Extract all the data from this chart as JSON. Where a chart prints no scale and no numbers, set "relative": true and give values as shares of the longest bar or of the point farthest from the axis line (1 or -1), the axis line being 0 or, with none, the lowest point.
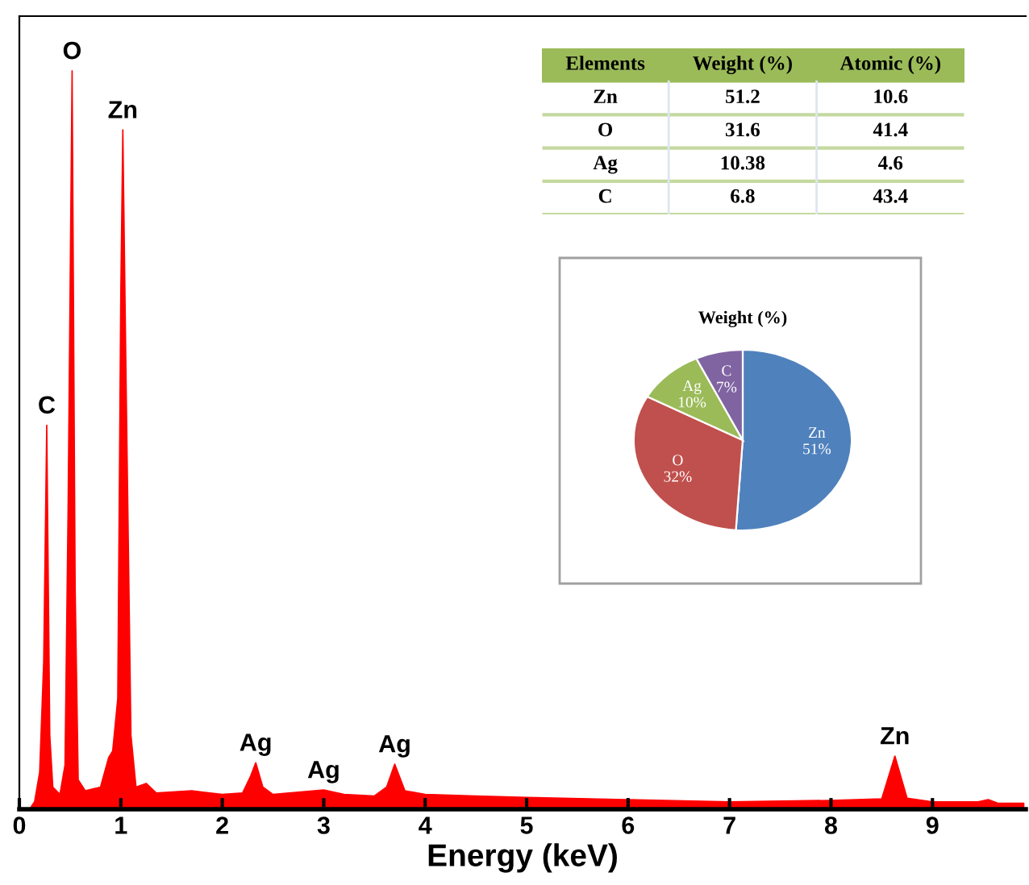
{
  "chart_data": [
    {
      "type": "area",
      "relative": true,
      "xlabel": "Energy (keV)",
      "xlim": [
        0,
        9.92
      ],
      "xticks": [
        0,
        1,
        2,
        3,
        4,
        5,
        6,
        7,
        8,
        9
      ],
      "grid": false,
      "legend": false,
      "series": [
        {
          "color": "#ff0000",
          "x": [
            0.1,
            0.15,
            0.2,
            0.24,
            0.27,
            0.3,
            0.33,
            0.4,
            0.45,
            0.48,
            0.52,
            0.55,
            0.58,
            0.65,
            0.8,
            0.88,
            0.92,
            0.97,
            1.0,
            1.02,
            1.05,
            1.1,
            1.15,
            1.25,
            1.35,
            1.7,
            2.0,
            2.2,
            2.28,
            2.33,
            2.4,
            2.5,
            3.0,
            3.2,
            3.5,
            3.62,
            3.7,
            3.8,
            4.0,
            4.5,
            5,
            6,
            7,
            8,
            8.5,
            8.63,
            8.75,
            9.0,
            9.45,
            9.55,
            9.65,
            9.9
          ],
          "values": [
            0,
            0.01,
            0.05,
            0.2,
            0.52,
            0.1,
            0.03,
            0.02,
            0.06,
            0.4,
            1.0,
            0.3,
            0.04,
            0.025,
            0.03,
            0.07,
            0.079,
            0.15,
            0.7,
            0.92,
            0.6,
            0.1,
            0.03,
            0.035,
            0.022,
            0.025,
            0.02,
            0.022,
            0.045,
            0.063,
            0.03,
            0.02,
            0.026,
            0.02,
            0.018,
            0.03,
            0.061,
            0.025,
            0.02,
            0.018,
            0.016,
            0.013,
            0.01,
            0.012,
            0.014,
            0.072,
            0.015,
            0.01,
            0.01,
            0.013,
            0.008,
            0.008
          ]
        }
      ],
      "annotations": [
        {
          "text": "C",
          "x": 0.27,
          "y": 0.52
        },
        {
          "text": "O",
          "x": 0.52,
          "y": 1.0
        },
        {
          "text": "Zn",
          "x": 1.02,
          "y": 0.92
        },
        {
          "text": "Ag",
          "x": 2.33,
          "y": 0.063
        },
        {
          "text": "Ag",
          "x": 3.0,
          "y": 0.026
        },
        {
          "text": "Ag",
          "x": 3.7,
          "y": 0.061
        },
        {
          "text": "Zn",
          "x": 8.63,
          "y": 0.072
        }
      ]
    },
    {
      "type": "other",
      "categories": [
        "Elements",
        "Weight (%)",
        "Atomic (%)"
      ],
      "y_categories": [
        "Zn",
        "O",
        "Ag",
        "C"
      ],
      "cell_labels": [
        [
          "51.2",
          "10.6"
        ],
        [
          "31.6",
          "41.4"
        ],
        [
          "10.38",
          "4.6"
        ],
        [
          "6.8",
          "43.4"
        ]
      ]
    },
    {
      "type": "pie",
      "title": "Weight (%)",
      "categories": [
        "Zn",
        "O",
        "Ag",
        "C"
      ],
      "values": [
        51,
        32,
        10,
        7
      ],
      "colors": [
        "#4f81bd",
        "#c0504d",
        "#9bbb59",
        "#8064a2"
      ],
      "value_labels": [
        "51%",
        "32%",
        "10%",
        "7%"
      ]
    }
  ]
}
